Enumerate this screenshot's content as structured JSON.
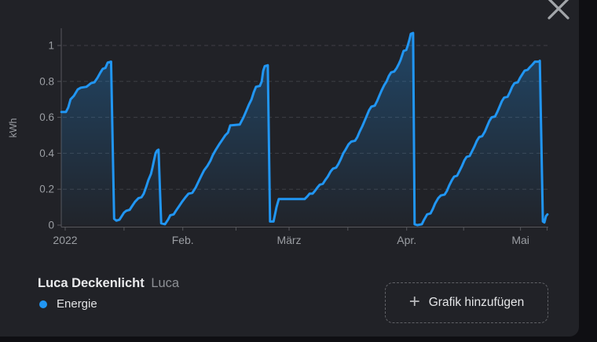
{
  "dialog": {
    "close_icon": "x"
  },
  "legend": {
    "title": "Luca Deckenlicht",
    "subtitle": "Luca",
    "series": [
      {
        "label": "Energie",
        "color": "#2196f3"
      }
    ]
  },
  "footer": {
    "add_button_label": "Grafik hinzufügen",
    "plus_icon": "+"
  },
  "chart_data": {
    "type": "line",
    "title": "",
    "xlabel": "",
    "ylabel": "kWh",
    "series_name": "Energie",
    "line_color": "#2196f3",
    "fill_color": "#2196f3",
    "grid": "horizontal-dashed",
    "legend_position": "bottom-left",
    "grid_color": "#3e3f45",
    "axis_color": "#56575c",
    "tick_label_color": "#9b9ea3",
    "x_unit": "days since 2022-01-01",
    "xlim": [
      -1,
      127.2
    ],
    "ylim": [
      0,
      1.1
    ],
    "yticks": [
      0,
      0.2,
      0.4,
      0.6,
      0.8,
      1
    ],
    "xticks": [
      {
        "day": 0,
        "label": "2022"
      },
      {
        "day": 15.5,
        "label": ""
      },
      {
        "day": 31,
        "label": "Feb."
      },
      {
        "day": 45,
        "label": ""
      },
      {
        "day": 59,
        "label": "März"
      },
      {
        "day": 74.5,
        "label": ""
      },
      {
        "day": 90,
        "label": "Apr."
      },
      {
        "day": 105,
        "label": ""
      },
      {
        "day": 120,
        "label": "Mai"
      },
      {
        "day": 127,
        "label": ""
      }
    ],
    "points": [
      [
        -1.0,
        0.63
      ],
      [
        0.2,
        0.63
      ],
      [
        0.8,
        0.655
      ],
      [
        1.4,
        0.7
      ],
      [
        2.3,
        0.72
      ],
      [
        3.3,
        0.755
      ],
      [
        4.1,
        0.765
      ],
      [
        5.6,
        0.77
      ],
      [
        6.2,
        0.78
      ],
      [
        6.8,
        0.79
      ],
      [
        7.7,
        0.795
      ],
      [
        8.5,
        0.82
      ],
      [
        9.3,
        0.85
      ],
      [
        9.9,
        0.87
      ],
      [
        10.6,
        0.875
      ],
      [
        11.2,
        0.905
      ],
      [
        12.1,
        0.91
      ],
      [
        12.9,
        0.035
      ],
      [
        13.5,
        0.025
      ],
      [
        14.3,
        0.03
      ],
      [
        14.9,
        0.05
      ],
      [
        15.5,
        0.07
      ],
      [
        16.1,
        0.08
      ],
      [
        17.0,
        0.085
      ],
      [
        17.6,
        0.105
      ],
      [
        18.4,
        0.13
      ],
      [
        19.3,
        0.15
      ],
      [
        20.1,
        0.155
      ],
      [
        20.7,
        0.175
      ],
      [
        21.3,
        0.21
      ],
      [
        21.9,
        0.25
      ],
      [
        22.6,
        0.285
      ],
      [
        23.0,
        0.32
      ],
      [
        23.4,
        0.36
      ],
      [
        23.8,
        0.4
      ],
      [
        24.2,
        0.415
      ],
      [
        24.6,
        0.42
      ],
      [
        25.3,
        0.01
      ],
      [
        26.3,
        0.005
      ],
      [
        27.1,
        0.03
      ],
      [
        27.7,
        0.055
      ],
      [
        28.6,
        0.06
      ],
      [
        29.2,
        0.08
      ],
      [
        30.0,
        0.105
      ],
      [
        30.8,
        0.13
      ],
      [
        31.7,
        0.155
      ],
      [
        32.5,
        0.175
      ],
      [
        33.5,
        0.18
      ],
      [
        34.4,
        0.21
      ],
      [
        35.2,
        0.245
      ],
      [
        36.0,
        0.28
      ],
      [
        36.6,
        0.305
      ],
      [
        37.5,
        0.33
      ],
      [
        38.3,
        0.36
      ],
      [
        38.9,
        0.39
      ],
      [
        39.7,
        0.42
      ],
      [
        40.6,
        0.45
      ],
      [
        41.4,
        0.475
      ],
      [
        42.2,
        0.5
      ],
      [
        42.9,
        0.515
      ],
      [
        43.5,
        0.555
      ],
      [
        46.0,
        0.56
      ],
      [
        47.0,
        0.6
      ],
      [
        47.8,
        0.64
      ],
      [
        48.4,
        0.67
      ],
      [
        49.1,
        0.7
      ],
      [
        49.7,
        0.74
      ],
      [
        50.3,
        0.77
      ],
      [
        51.3,
        0.775
      ],
      [
        51.8,
        0.8
      ],
      [
        52.2,
        0.86
      ],
      [
        52.6,
        0.885
      ],
      [
        53.4,
        0.89
      ],
      [
        54.0,
        0.02
      ],
      [
        54.9,
        0.02
      ],
      [
        55.3,
        0.06
      ],
      [
        55.7,
        0.1
      ],
      [
        56.3,
        0.145
      ],
      [
        63.1,
        0.145
      ],
      [
        63.8,
        0.16
      ],
      [
        64.4,
        0.175
      ],
      [
        65.2,
        0.175
      ],
      [
        65.8,
        0.19
      ],
      [
        66.5,
        0.21
      ],
      [
        67.1,
        0.225
      ],
      [
        67.9,
        0.23
      ],
      [
        68.5,
        0.25
      ],
      [
        69.2,
        0.27
      ],
      [
        70.0,
        0.3
      ],
      [
        70.6,
        0.315
      ],
      [
        71.4,
        0.32
      ],
      [
        72.0,
        0.34
      ],
      [
        72.7,
        0.37
      ],
      [
        73.3,
        0.4
      ],
      [
        73.9,
        0.42
      ],
      [
        74.7,
        0.45
      ],
      [
        75.4,
        0.465
      ],
      [
        76.4,
        0.47
      ],
      [
        77.0,
        0.49
      ],
      [
        77.6,
        0.52
      ],
      [
        78.3,
        0.55
      ],
      [
        78.9,
        0.58
      ],
      [
        79.5,
        0.61
      ],
      [
        80.1,
        0.64
      ],
      [
        80.7,
        0.66
      ],
      [
        81.6,
        0.665
      ],
      [
        82.2,
        0.69
      ],
      [
        82.8,
        0.72
      ],
      [
        83.4,
        0.75
      ],
      [
        84.1,
        0.78
      ],
      [
        84.7,
        0.8
      ],
      [
        85.3,
        0.83
      ],
      [
        85.9,
        0.85
      ],
      [
        86.7,
        0.855
      ],
      [
        87.4,
        0.875
      ],
      [
        88.0,
        0.9
      ],
      [
        88.4,
        0.92
      ],
      [
        88.8,
        0.945
      ],
      [
        89.2,
        0.97
      ],
      [
        89.9,
        0.975
      ],
      [
        90.3,
        1.0
      ],
      [
        90.7,
        1.03
      ],
      [
        91.1,
        1.065
      ],
      [
        91.7,
        1.07
      ],
      [
        92.1,
        0.005
      ],
      [
        92.8,
        0.0
      ],
      [
        94.0,
        0.005
      ],
      [
        94.6,
        0.03
      ],
      [
        95.4,
        0.06
      ],
      [
        96.3,
        0.065
      ],
      [
        96.9,
        0.09
      ],
      [
        97.5,
        0.12
      ],
      [
        98.3,
        0.15
      ],
      [
        99.0,
        0.165
      ],
      [
        100.0,
        0.17
      ],
      [
        100.6,
        0.19
      ],
      [
        101.2,
        0.22
      ],
      [
        101.9,
        0.25
      ],
      [
        102.5,
        0.27
      ],
      [
        103.3,
        0.275
      ],
      [
        103.9,
        0.3
      ],
      [
        104.6,
        0.33
      ],
      [
        105.2,
        0.36
      ],
      [
        105.8,
        0.38
      ],
      [
        106.6,
        0.385
      ],
      [
        107.2,
        0.41
      ],
      [
        107.9,
        0.44
      ],
      [
        108.5,
        0.47
      ],
      [
        109.1,
        0.49
      ],
      [
        109.9,
        0.495
      ],
      [
        110.6,
        0.52
      ],
      [
        111.2,
        0.55
      ],
      [
        111.8,
        0.58
      ],
      [
        112.4,
        0.6
      ],
      [
        113.3,
        0.605
      ],
      [
        113.9,
        0.63
      ],
      [
        114.5,
        0.66
      ],
      [
        115.1,
        0.69
      ],
      [
        115.7,
        0.71
      ],
      [
        116.6,
        0.715
      ],
      [
        117.2,
        0.74
      ],
      [
        117.8,
        0.77
      ],
      [
        118.4,
        0.79
      ],
      [
        119.3,
        0.795
      ],
      [
        119.9,
        0.82
      ],
      [
        120.5,
        0.84
      ],
      [
        121.1,
        0.86
      ],
      [
        121.9,
        0.865
      ],
      [
        122.5,
        0.88
      ],
      [
        123.2,
        0.895
      ],
      [
        123.8,
        0.91
      ],
      [
        124.8,
        0.91
      ],
      [
        125.1,
        0.915
      ],
      [
        125.9,
        0.02
      ],
      [
        126.3,
        0.015
      ],
      [
        126.7,
        0.05
      ],
      [
        127.1,
        0.06
      ]
    ]
  }
}
